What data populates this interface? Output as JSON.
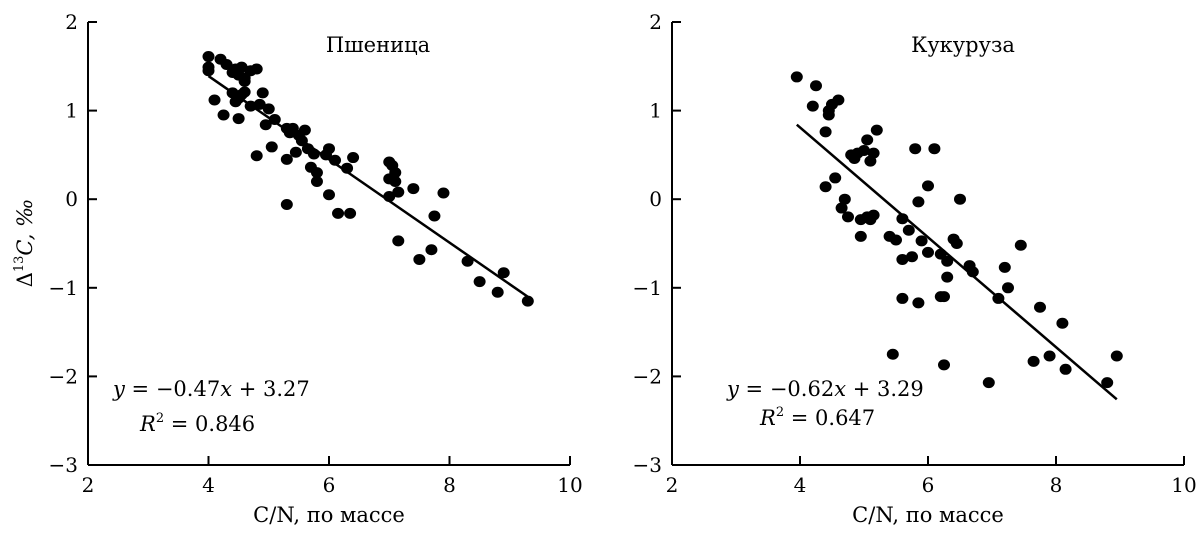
{
  "chart_data": [
    {
      "type": "scatter",
      "title": "Пшеница",
      "xlabel": "C/N, по массе",
      "ylabel": "Δ13C, ‰",
      "ylabel_base": "Δ",
      "ylabel_sup": "13",
      "ylabel_rest": "C, ‰",
      "xlim": [
        2,
        10
      ],
      "ylim": [
        -3,
        2
      ],
      "xticks": [
        2,
        4,
        6,
        8,
        10
      ],
      "yticks": [
        -3,
        -2,
        -1,
        0,
        1,
        2
      ],
      "xtick_labels": [
        "2",
        "4",
        "6",
        "8",
        "10"
      ],
      "ytick_labels": [
        "−3",
        "−2",
        "−1",
        "0",
        "1",
        "2"
      ],
      "grid": false,
      "fit": {
        "slope": -0.47,
        "intercept": 3.27,
        "x_range": [
          4.0,
          9.3
        ]
      },
      "equation": "y = −0.47x + 3.27",
      "r2_label": "R2 = 0.846",
      "r2_value": "0.846",
      "points": [
        {
          "x": 4.0,
          "y": 1.61
        },
        {
          "x": 4.0,
          "y": 1.45
        },
        {
          "x": 4.0,
          "y": 1.49
        },
        {
          "x": 4.2,
          "y": 1.58
        },
        {
          "x": 4.3,
          "y": 1.52
        },
        {
          "x": 4.4,
          "y": 1.43
        },
        {
          "x": 4.45,
          "y": 1.47
        },
        {
          "x": 4.5,
          "y": 1.4
        },
        {
          "x": 4.55,
          "y": 1.49
        },
        {
          "x": 4.6,
          "y": 1.37
        },
        {
          "x": 4.6,
          "y": 1.33
        },
        {
          "x": 4.7,
          "y": 1.45
        },
        {
          "x": 4.8,
          "y": 1.47
        },
        {
          "x": 4.1,
          "y": 1.12
        },
        {
          "x": 4.25,
          "y": 0.95
        },
        {
          "x": 4.4,
          "y": 1.2
        },
        {
          "x": 4.45,
          "y": 1.1
        },
        {
          "x": 4.5,
          "y": 1.14
        },
        {
          "x": 4.55,
          "y": 1.18
        },
        {
          "x": 4.6,
          "y": 1.21
        },
        {
          "x": 4.5,
          "y": 0.91
        },
        {
          "x": 4.7,
          "y": 1.05
        },
        {
          "x": 4.85,
          "y": 1.07
        },
        {
          "x": 4.9,
          "y": 1.2
        },
        {
          "x": 5.0,
          "y": 1.02
        },
        {
          "x": 4.8,
          "y": 0.49
        },
        {
          "x": 4.95,
          "y": 0.84
        },
        {
          "x": 5.1,
          "y": 0.9
        },
        {
          "x": 5.05,
          "y": 0.59
        },
        {
          "x": 5.3,
          "y": 0.8
        },
        {
          "x": 5.35,
          "y": 0.75
        },
        {
          "x": 5.4,
          "y": 0.8
        },
        {
          "x": 5.5,
          "y": 0.72
        },
        {
          "x": 5.55,
          "y": 0.66
        },
        {
          "x": 5.6,
          "y": 0.78
        },
        {
          "x": 5.3,
          "y": 0.45
        },
        {
          "x": 5.45,
          "y": 0.53
        },
        {
          "x": 5.65,
          "y": 0.57
        },
        {
          "x": 5.7,
          "y": 0.36
        },
        {
          "x": 5.75,
          "y": 0.51
        },
        {
          "x": 5.8,
          "y": 0.3
        },
        {
          "x": 5.8,
          "y": 0.2
        },
        {
          "x": 5.95,
          "y": 0.5
        },
        {
          "x": 6.0,
          "y": 0.57
        },
        {
          "x": 6.1,
          "y": 0.44
        },
        {
          "x": 6.3,
          "y": 0.35
        },
        {
          "x": 6.4,
          "y": 0.47
        },
        {
          "x": 6.0,
          "y": 0.05
        },
        {
          "x": 6.15,
          "y": -0.16
        },
        {
          "x": 6.35,
          "y": -0.16
        },
        {
          "x": 5.3,
          "y": -0.06
        },
        {
          "x": 7.0,
          "y": 0.42
        },
        {
          "x": 7.05,
          "y": 0.38
        },
        {
          "x": 7.1,
          "y": 0.3
        },
        {
          "x": 7.0,
          "y": 0.23
        },
        {
          "x": 7.1,
          "y": 0.2
        },
        {
          "x": 7.0,
          "y": 0.03
        },
        {
          "x": 7.15,
          "y": 0.08
        },
        {
          "x": 7.4,
          "y": 0.12
        },
        {
          "x": 7.15,
          "y": -0.47
        },
        {
          "x": 7.5,
          "y": -0.68
        },
        {
          "x": 7.7,
          "y": -0.57
        },
        {
          "x": 7.75,
          "y": -0.19
        },
        {
          "x": 7.9,
          "y": 0.07
        },
        {
          "x": 8.3,
          "y": -0.7
        },
        {
          "x": 8.5,
          "y": -0.93
        },
        {
          "x": 8.8,
          "y": -1.05
        },
        {
          "x": 8.9,
          "y": -0.83
        },
        {
          "x": 9.3,
          "y": -1.15
        }
      ]
    },
    {
      "type": "scatter",
      "title": "Кукуруза",
      "xlabel": "C/N, по массе",
      "ylabel": "",
      "xlim": [
        2,
        10
      ],
      "ylim": [
        -3,
        2
      ],
      "xticks": [
        2,
        4,
        6,
        8,
        10
      ],
      "yticks": [
        -3,
        -2,
        -1,
        0,
        1,
        2
      ],
      "xtick_labels": [
        "2",
        "4",
        "6",
        "8",
        "10"
      ],
      "ytick_labels": [
        "−3",
        "−2",
        "−1",
        "0",
        "1",
        "2"
      ],
      "grid": false,
      "fit": {
        "slope": -0.62,
        "intercept": 3.29,
        "x_range": [
          3.95,
          8.95
        ]
      },
      "equation": "y = −0.62x + 3.29",
      "r2_label": "R2 = 0.647",
      "r2_value": "0.647",
      "points": [
        {
          "x": 3.95,
          "y": 1.38
        },
        {
          "x": 4.25,
          "y": 1.28
        },
        {
          "x": 4.2,
          "y": 1.05
        },
        {
          "x": 4.45,
          "y": 1.0
        },
        {
          "x": 4.5,
          "y": 1.07
        },
        {
          "x": 4.6,
          "y": 1.12
        },
        {
          "x": 4.45,
          "y": 0.95
        },
        {
          "x": 4.4,
          "y": 0.76
        },
        {
          "x": 4.8,
          "y": 0.5
        },
        {
          "x": 4.85,
          "y": 0.46
        },
        {
          "x": 4.9,
          "y": 0.52
        },
        {
          "x": 5.0,
          "y": 0.55
        },
        {
          "x": 5.05,
          "y": 0.67
        },
        {
          "x": 5.15,
          "y": 0.52
        },
        {
          "x": 5.1,
          "y": 0.43
        },
        {
          "x": 5.2,
          "y": 0.78
        },
        {
          "x": 4.4,
          "y": 0.14
        },
        {
          "x": 4.55,
          "y": 0.24
        },
        {
          "x": 4.7,
          "y": 0.0
        },
        {
          "x": 4.65,
          "y": -0.1
        },
        {
          "x": 4.75,
          "y": -0.2
        },
        {
          "x": 4.95,
          "y": -0.23
        },
        {
          "x": 5.05,
          "y": -0.2
        },
        {
          "x": 5.1,
          "y": -0.23
        },
        {
          "x": 5.15,
          "y": -0.18
        },
        {
          "x": 4.95,
          "y": -0.42
        },
        {
          "x": 5.4,
          "y": -0.42
        },
        {
          "x": 5.5,
          "y": -0.46
        },
        {
          "x": 5.6,
          "y": -0.22
        },
        {
          "x": 5.7,
          "y": -0.35
        },
        {
          "x": 5.6,
          "y": -0.68
        },
        {
          "x": 5.75,
          "y": -0.65
        },
        {
          "x": 5.8,
          "y": 0.57
        },
        {
          "x": 5.85,
          "y": -0.03
        },
        {
          "x": 6.0,
          "y": 0.15
        },
        {
          "x": 6.1,
          "y": 0.57
        },
        {
          "x": 6.5,
          "y": 0.0
        },
        {
          "x": 5.9,
          "y": -0.47
        },
        {
          "x": 6.0,
          "y": -0.6
        },
        {
          "x": 6.2,
          "y": -0.62
        },
        {
          "x": 6.3,
          "y": -0.7
        },
        {
          "x": 6.4,
          "y": -0.45
        },
        {
          "x": 6.45,
          "y": -0.5
        },
        {
          "x": 6.3,
          "y": -0.88
        },
        {
          "x": 6.65,
          "y": -0.75
        },
        {
          "x": 6.7,
          "y": -0.82
        },
        {
          "x": 5.6,
          "y": -1.12
        },
        {
          "x": 5.85,
          "y": -1.17
        },
        {
          "x": 6.2,
          "y": -1.1
        },
        {
          "x": 6.25,
          "y": -1.1
        },
        {
          "x": 5.45,
          "y": -1.75
        },
        {
          "x": 6.25,
          "y": -1.87
        },
        {
          "x": 6.95,
          "y": -2.07
        },
        {
          "x": 7.1,
          "y": -1.12
        },
        {
          "x": 7.2,
          "y": -0.77
        },
        {
          "x": 7.25,
          "y": -1.0
        },
        {
          "x": 7.45,
          "y": -0.52
        },
        {
          "x": 7.65,
          "y": -1.83
        },
        {
          "x": 7.75,
          "y": -1.22
        },
        {
          "x": 7.9,
          "y": -1.77
        },
        {
          "x": 8.1,
          "y": -1.4
        },
        {
          "x": 8.15,
          "y": -1.92
        },
        {
          "x": 8.8,
          "y": -2.07
        },
        {
          "x": 8.95,
          "y": -1.77
        }
      ]
    }
  ]
}
